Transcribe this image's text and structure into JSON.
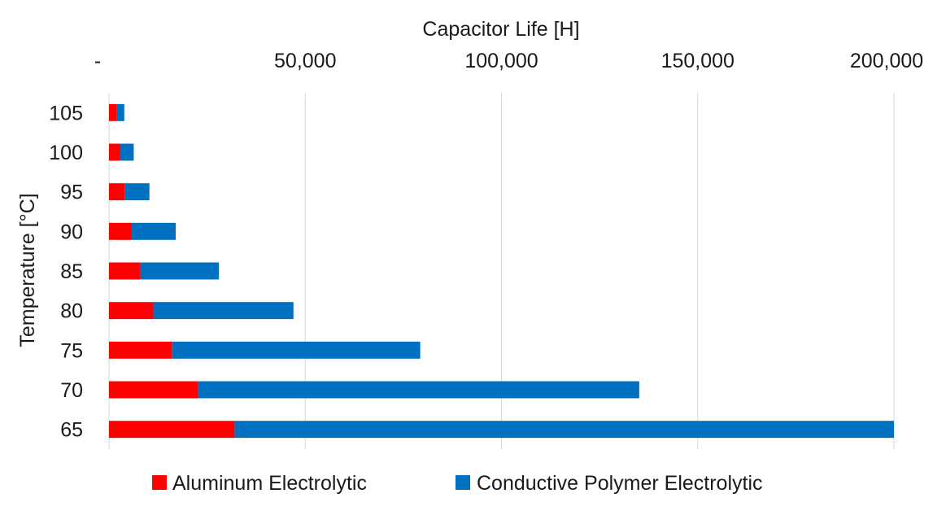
{
  "chart_data": {
    "type": "bar",
    "orientation": "horizontal",
    "stacked": true,
    "xlabel": "Capacitor Life [H]",
    "ylabel": "Temperature [°C]",
    "x_axis_position": "top",
    "xlim": [
      0,
      200000
    ],
    "x_ticks": [
      {
        "value": 0,
        "label": "-"
      },
      {
        "value": 50000,
        "label": "50,000"
      },
      {
        "value": 100000,
        "label": "100,000"
      },
      {
        "value": 150000,
        "label": "150,000"
      },
      {
        "value": 200000,
        "label": "200,000"
      }
    ],
    "categories": [
      "105",
      "100",
      "95",
      "90",
      "85",
      "80",
      "75",
      "70",
      "65"
    ],
    "series": [
      {
        "name": "Aluminum Electrolytic",
        "color": "#ff0000",
        "values": [
          2000,
          2800,
          4000,
          5700,
          8000,
          11300,
          16000,
          22600,
          32000
        ]
      },
      {
        "name": "Conductive Polymer Electrolytic",
        "color": "#0070c0",
        "values": [
          1900,
          3500,
          6300,
          11300,
          20000,
          35700,
          63300,
          112500,
          168000
        ]
      }
    ],
    "grid": true,
    "legend_position": "bottom"
  }
}
